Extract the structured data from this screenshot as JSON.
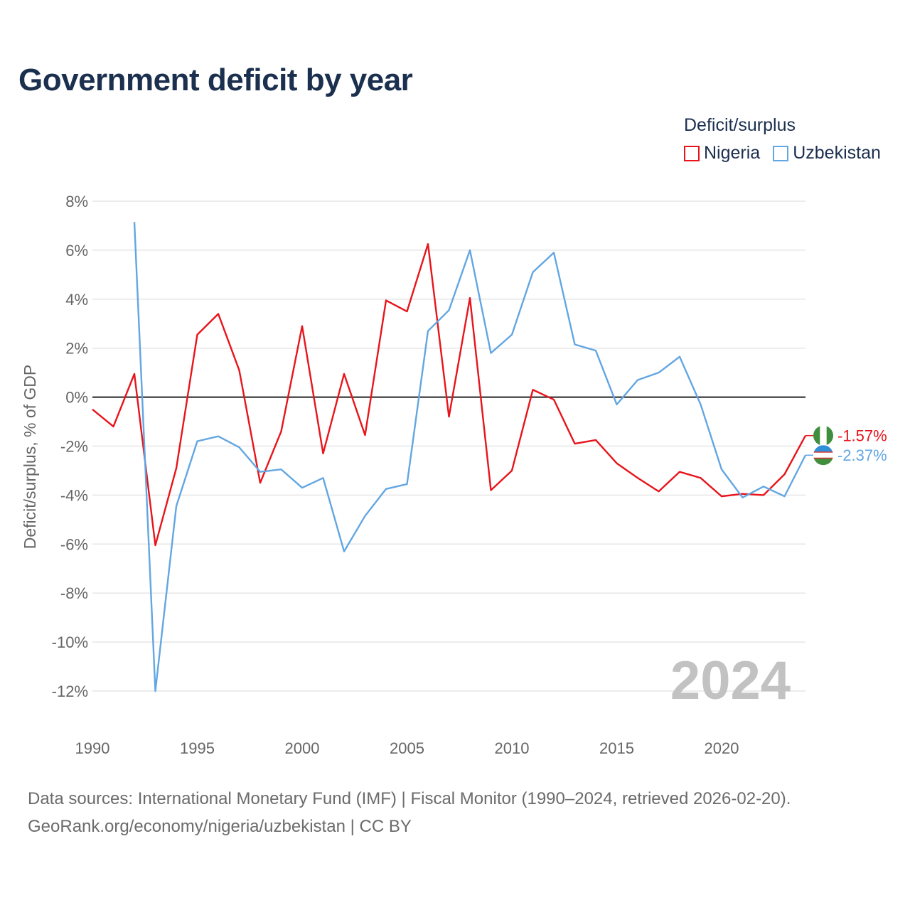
{
  "title": "Government deficit by year",
  "legend": {
    "title": "Deficit/surplus",
    "items": [
      {
        "name": "Nigeria",
        "color": "#e8141b"
      },
      {
        "name": "Uzbekistan",
        "color": "#62a6e2"
      }
    ]
  },
  "sources": {
    "line1": "Data sources: International Monetary Fund (IMF) | Fiscal Monitor (1990–2024, retrieved 2026-02-20).",
    "line2": "GeoRank.org/economy/nigeria/uzbekistan | CC BY"
  },
  "chart_data": {
    "type": "line",
    "title": "Government deficit by year",
    "xlabel": "",
    "ylabel": "Deficit/surplus, % of GDP",
    "xlim": [
      1990,
      2024
    ],
    "ylim": [
      -12,
      8
    ],
    "x_ticks": [
      1990,
      1995,
      2000,
      2005,
      2010,
      2015,
      2020
    ],
    "y_ticks": [
      8,
      6,
      4,
      2,
      0,
      -2,
      -4,
      -6,
      -8,
      -10,
      -12
    ],
    "y_tick_labels": [
      "8%",
      "6%",
      "4%",
      "2%",
      "0%",
      "-2%",
      "-4%",
      "-6%",
      "-8%",
      "-10%",
      "-12%"
    ],
    "grid": true,
    "watermark_year": "2024",
    "series": [
      {
        "name": "Nigeria",
        "color": "#e8141b",
        "end_label": "-1.57%",
        "x": [
          1990,
          1991,
          1992,
          1993,
          1994,
          1995,
          1996,
          1997,
          1998,
          1999,
          2000,
          2001,
          2002,
          2003,
          2004,
          2005,
          2006,
          2007,
          2008,
          2009,
          2010,
          2011,
          2012,
          2013,
          2014,
          2015,
          2016,
          2017,
          2018,
          2019,
          2020,
          2021,
          2022,
          2023,
          2024
        ],
        "values": [
          -0.5,
          -1.2,
          0.95,
          -6.05,
          -2.9,
          2.55,
          3.4,
          1.1,
          -3.5,
          -1.4,
          2.9,
          -2.3,
          0.95,
          -1.55,
          3.95,
          3.5,
          6.25,
          -0.8,
          4.05,
          -3.8,
          -3.0,
          0.3,
          -0.1,
          -1.9,
          -1.75,
          -2.7,
          -3.3,
          -3.85,
          -3.05,
          -3.3,
          -4.05,
          -3.95,
          -4.0,
          -3.15,
          -1.57
        ]
      },
      {
        "name": "Uzbekistan",
        "color": "#62a6e2",
        "end_label": "-2.37%",
        "x": [
          1992,
          1993,
          1994,
          1995,
          1996,
          1997,
          1998,
          1999,
          2000,
          2001,
          2002,
          2003,
          2004,
          2005,
          2006,
          2007,
          2008,
          2009,
          2010,
          2011,
          2012,
          2013,
          2014,
          2015,
          2016,
          2017,
          2018,
          2019,
          2020,
          2021,
          2022,
          2023,
          2024
        ],
        "values": [
          7.15,
          -12.0,
          -4.45,
          -1.8,
          -1.6,
          -2.05,
          -3.05,
          -2.95,
          -3.7,
          -3.3,
          -6.3,
          -4.85,
          -3.75,
          -3.55,
          2.7,
          3.55,
          6.0,
          1.8,
          2.55,
          5.1,
          5.9,
          2.15,
          1.9,
          -0.3,
          0.7,
          1.0,
          1.65,
          -0.3,
          -2.95,
          -4.1,
          -3.65,
          -4.05,
          -2.37
        ]
      }
    ]
  }
}
